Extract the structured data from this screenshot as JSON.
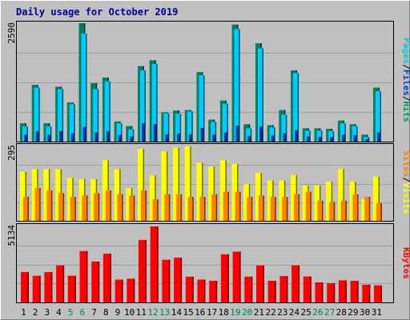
{
  "chart_data": [
    {
      "type": "bar",
      "title": "Daily usage for October 2019",
      "ylabel_parts": [
        {
          "text": "Pages",
          "color": "#00cccc"
        },
        {
          "text": "/",
          "color": "#000000"
        },
        {
          "text": "Files",
          "color": "#0040c0"
        },
        {
          "text": "/",
          "color": "#000000"
        },
        {
          "text": "Hits",
          "color": "#009966"
        }
      ],
      "y_tick": "2590",
      "ymax": 2590,
      "categories": [
        "1",
        "2",
        "3",
        "4",
        "5",
        "6",
        "7",
        "8",
        "9",
        "10",
        "11",
        "12",
        "13",
        "14",
        "15",
        "16",
        "17",
        "18",
        "19",
        "20",
        "21",
        "22",
        "23",
        "24",
        "25",
        "26",
        "27",
        "28",
        "29",
        "30",
        "31"
      ],
      "weekend_days": [
        "5",
        "6",
        "12",
        "13",
        "19",
        "20",
        "26",
        "27"
      ],
      "series": [
        {
          "name": "Hits",
          "color": "#008060",
          "values": [
            400,
            1240,
            400,
            1200,
            860,
            2590,
            1280,
            1400,
            440,
            340,
            1650,
            1780,
            640,
            680,
            690,
            1520,
            480,
            900,
            2560,
            380,
            2150,
            360,
            690,
            1560,
            290,
            290,
            280,
            460,
            380,
            150,
            1180
          ]
        },
        {
          "name": "Files",
          "color": "#00ccff",
          "values": [
            330,
            1180,
            330,
            1150,
            820,
            2360,
            1150,
            1320,
            400,
            270,
            1560,
            1700,
            620,
            610,
            660,
            1450,
            430,
            830,
            2460,
            290,
            2040,
            310,
            590,
            1500,
            240,
            240,
            230,
            400,
            340,
            100,
            1100
          ]
        },
        {
          "name": "Pages",
          "color": "#0040c0",
          "values": [
            150,
            230,
            150,
            230,
            180,
            320,
            200,
            220,
            140,
            110,
            400,
            380,
            160,
            170,
            160,
            300,
            150,
            200,
            350,
            120,
            330,
            130,
            180,
            250,
            110,
            100,
            100,
            150,
            140,
            50,
            200
          ]
        }
      ]
    },
    {
      "type": "bar",
      "ylabel_parts": [
        {
          "text": "Sites",
          "color": "#ff8000"
        },
        {
          "text": "/",
          "color": "#000000"
        },
        {
          "text": "Visits",
          "color": "#ffff00"
        }
      ],
      "y_tick": "295",
      "ymax": 295,
      "categories": [
        "1",
        "2",
        "3",
        "4",
        "5",
        "6",
        "7",
        "8",
        "9",
        "10",
        "11",
        "12",
        "13",
        "14",
        "15",
        "16",
        "17",
        "18",
        "19",
        "20",
        "21",
        "22",
        "23",
        "24",
        "25",
        "26",
        "27",
        "28",
        "29",
        "30",
        "31"
      ],
      "series": [
        {
          "name": "Visits",
          "color": "#ffff00",
          "values": [
            195,
            205,
            205,
            205,
            170,
            165,
            165,
            240,
            205,
            130,
            285,
            180,
            275,
            290,
            295,
            230,
            215,
            240,
            225,
            145,
            190,
            160,
            160,
            180,
            140,
            140,
            155,
            205,
            155,
            85,
            175
          ]
        },
        {
          "name": "Sites",
          "color": "#ff8000",
          "values": [
            95,
            130,
            120,
            110,
            95,
            100,
            110,
            120,
            105,
            100,
            120,
            85,
            105,
            105,
            95,
            95,
            105,
            115,
            115,
            95,
            100,
            95,
            95,
            105,
            115,
            80,
            75,
            80,
            105,
            95,
            70
          ]
        }
      ]
    },
    {
      "type": "bar",
      "ylabel_parts": [
        {
          "text": "KBytes",
          "color": "#ff0000"
        }
      ],
      "y_tick": "5134",
      "ymax": 5134,
      "categories": [
        "1",
        "2",
        "3",
        "4",
        "5",
        "6",
        "7",
        "8",
        "9",
        "10",
        "11",
        "12",
        "13",
        "14",
        "15",
        "16",
        "17",
        "18",
        "19",
        "20",
        "21",
        "22",
        "23",
        "24",
        "25",
        "26",
        "27",
        "28",
        "29",
        "30",
        "31"
      ],
      "series": [
        {
          "name": "KBytes",
          "color": "#ff0000",
          "values": [
            2050,
            1800,
            2050,
            2500,
            1800,
            3470,
            2760,
            3290,
            1540,
            1600,
            4220,
            5134,
            2880,
            3020,
            1740,
            1540,
            1460,
            3250,
            3430,
            1740,
            2490,
            1460,
            1780,
            2500,
            1750,
            1350,
            1300,
            1490,
            1460,
            1200,
            1150
          ]
        }
      ]
    }
  ]
}
